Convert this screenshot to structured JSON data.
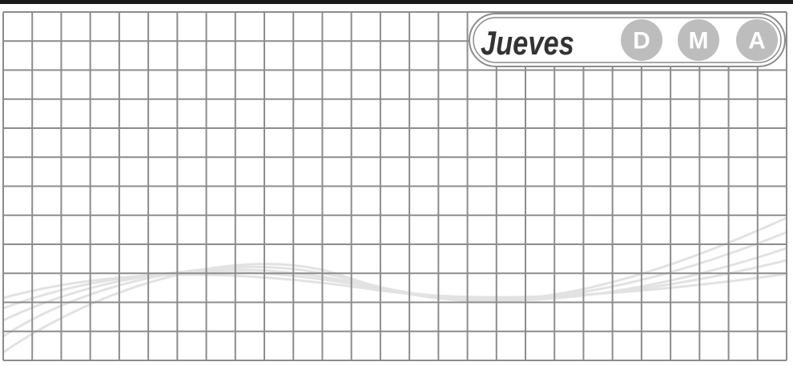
{
  "header": {
    "day": "Jueves",
    "date_boxes": [
      "D",
      "M",
      "A"
    ]
  }
}
